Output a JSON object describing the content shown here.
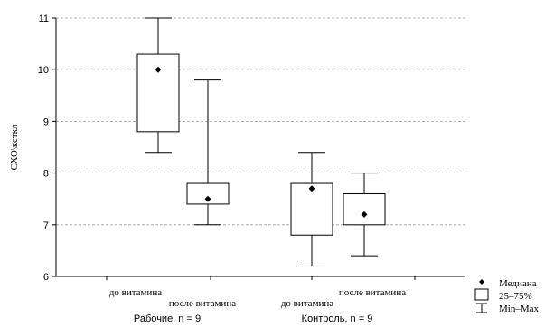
{
  "chart_data": {
    "type": "box",
    "ylabel": "СХО\\ксткл",
    "ylim": [
      6,
      11
    ],
    "yticks": [
      6,
      7,
      8,
      9,
      10,
      11
    ],
    "grid": true,
    "legend_position": "bottom-right",
    "legend": {
      "median": "Медиана",
      "iqr": "25–75%",
      "range": "Min–Max"
    },
    "groups": [
      {
        "label": "Рабочие, n = 9"
      },
      {
        "label": "Контроль, n = 9"
      }
    ],
    "boxes": [
      {
        "group": 0,
        "label": "до витамина",
        "min": 8.4,
        "q1": 8.8,
        "median": 10.0,
        "q3": 10.3,
        "max": 11.0
      },
      {
        "group": 0,
        "label": "после витамина",
        "min": 7.0,
        "q1": 7.4,
        "median": 7.5,
        "q3": 7.8,
        "max": 9.8
      },
      {
        "group": 1,
        "label": "до витамина",
        "min": 6.2,
        "q1": 6.8,
        "median": 7.7,
        "q3": 7.8,
        "max": 8.4
      },
      {
        "group": 1,
        "label": "после витамина",
        "min": 6.4,
        "q1": 7.0,
        "median": 7.2,
        "q3": 7.6,
        "max": 8.0
      }
    ]
  }
}
